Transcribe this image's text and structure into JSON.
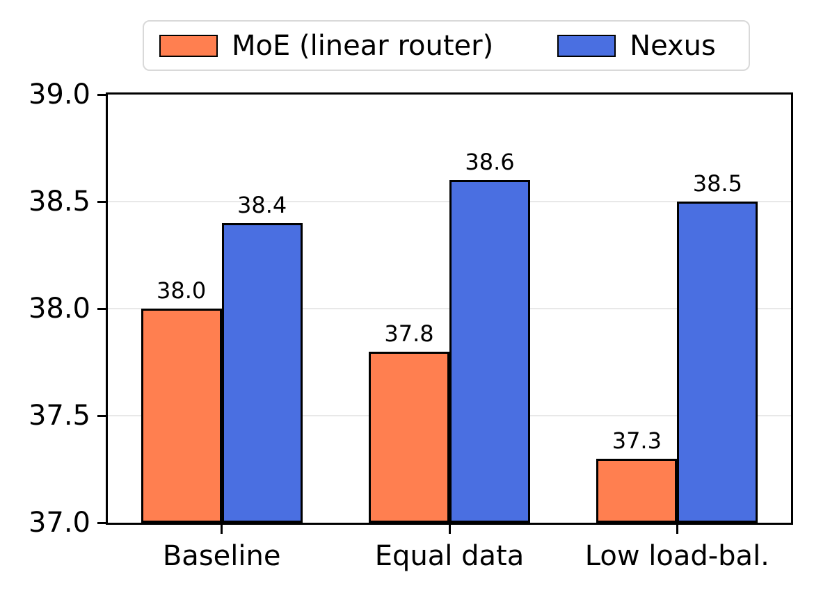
{
  "figure": {
    "background": "#ffffff",
    "text_color": "#000000",
    "gridline_color": "#e8e8e8",
    "axis_color": "#000000"
  },
  "chart_data": {
    "type": "bar",
    "title": "",
    "xlabel": "",
    "ylabel": "",
    "categories": [
      "Baseline",
      "Equal data",
      "Low load-bal."
    ],
    "series": [
      {
        "name": "MoE (linear router)",
        "color": "#ff7f50",
        "values": [
          38.0,
          37.8,
          37.3
        ]
      },
      {
        "name": "Nexus",
        "color": "#4a6fe1",
        "values": [
          38.4,
          38.6,
          38.5
        ]
      }
    ],
    "value_labels": true,
    "value_label_format": "1dp",
    "ylim": [
      37.0,
      39.0
    ],
    "yticks": [
      37.0,
      37.5,
      38.0,
      38.5,
      39.0
    ],
    "ytick_labels": [
      "37.0",
      "37.5",
      "38.0",
      "38.5",
      "39.0"
    ],
    "grid": "horizontal",
    "legend_position": "top",
    "bar_edge_color": "#000000"
  }
}
